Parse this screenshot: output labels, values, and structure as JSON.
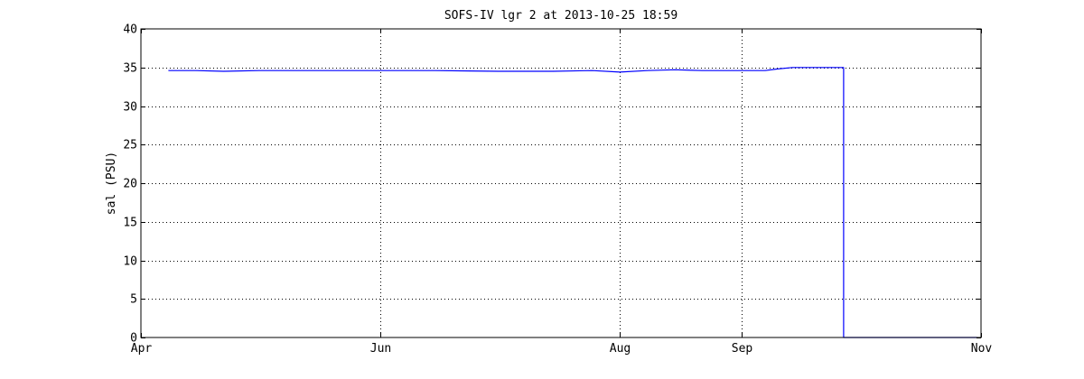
{
  "chart_data": {
    "type": "line",
    "title": "SOFS-IV lgr 2 at 2013-10-25 18:59",
    "xlabel": "",
    "ylabel": "sal (PSU)",
    "xlim": [
      "2013-04-01",
      "2013-11-01"
    ],
    "ylim": [
      0,
      40
    ],
    "x_ticks": [
      {
        "label": "Apr",
        "date": "2013-04-01"
      },
      {
        "label": "Jun",
        "date": "2013-06-01"
      },
      {
        "label": "Aug",
        "date": "2013-08-01"
      },
      {
        "label": "Sep",
        "date": "2013-09-01"
      },
      {
        "label": "Nov",
        "date": "2013-11-01"
      }
    ],
    "y_ticks": [
      0,
      5,
      10,
      15,
      20,
      25,
      30,
      35,
      40
    ],
    "grid": true,
    "grid_style": "dotted",
    "series": [
      {
        "color": "#0000ff",
        "x": [
          "2013-04-08",
          "2013-04-15",
          "2013-04-22",
          "2013-05-01",
          "2013-05-15",
          "2013-06-01",
          "2013-06-15",
          "2013-07-01",
          "2013-07-15",
          "2013-07-25",
          "2013-08-01",
          "2013-08-08",
          "2013-08-15",
          "2013-08-22",
          "2013-09-01",
          "2013-09-07",
          "2013-09-10",
          "2013-09-14",
          "2013-09-20",
          "2013-09-26",
          "2013-09-27",
          "2013-10-31"
        ],
        "y": [
          34.6,
          34.6,
          34.5,
          34.6,
          34.6,
          34.6,
          34.6,
          34.5,
          34.5,
          34.6,
          34.4,
          34.6,
          34.7,
          34.6,
          34.6,
          34.6,
          34.8,
          35.0,
          35.0,
          35.0,
          0,
          0
        ]
      }
    ]
  }
}
